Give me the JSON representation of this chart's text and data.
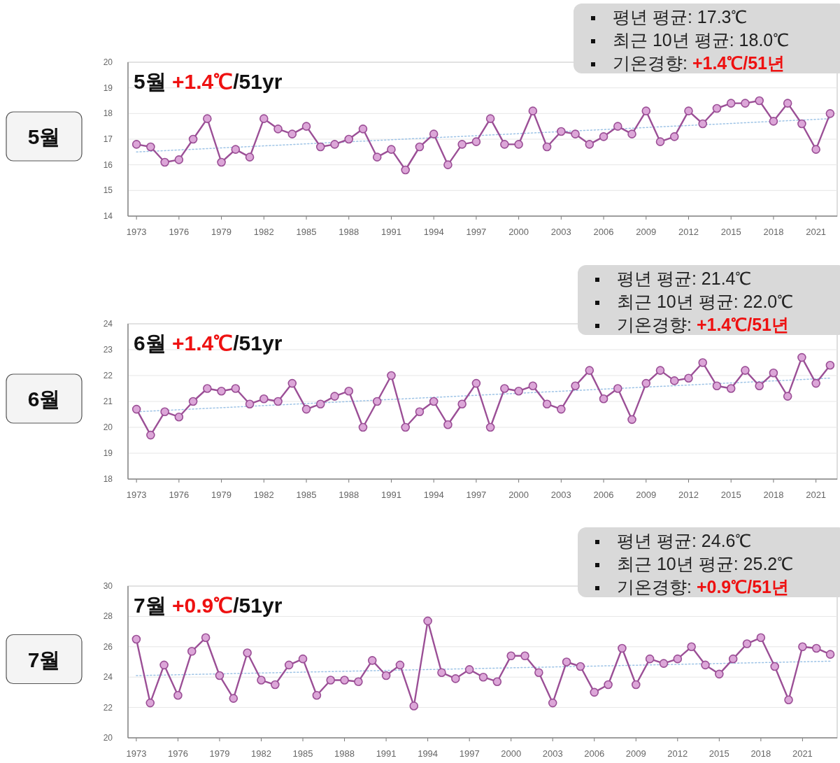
{
  "chart_data": [
    {
      "type": "line",
      "title": "5월 +1.4℃/51yr",
      "annotations": [
        "5월",
        "평년 평균: 17.3℃",
        "최근 10년 평균: 18.0℃",
        "기온경향: +1.4℃/51년"
      ],
      "x": [
        1973,
        1974,
        1975,
        1976,
        1977,
        1978,
        1979,
        1980,
        1981,
        1982,
        1983,
        1984,
        1985,
        1986,
        1987,
        1988,
        1989,
        1990,
        1991,
        1992,
        1993,
        1994,
        1995,
        1996,
        1997,
        1998,
        1999,
        2000,
        2001,
        2002,
        2003,
        2004,
        2005,
        2006,
        2007,
        2008,
        2009,
        2010,
        2011,
        2012,
        2013,
        2014,
        2015,
        2016,
        2017,
        2018,
        2019,
        2020,
        2021,
        2022
      ],
      "series": [
        {
          "type": "line",
          "color": "#9b4f96",
          "marker": "circle",
          "values": [
            16.8,
            16.7,
            16.1,
            16.2,
            17.0,
            17.8,
            16.1,
            16.6,
            16.3,
            17.8,
            17.4,
            17.2,
            17.5,
            16.7,
            16.8,
            17.0,
            17.4,
            16.3,
            16.6,
            15.8,
            16.7,
            17.2,
            16.0,
            16.8,
            16.9,
            17.8,
            16.8,
            16.8,
            18.1,
            16.7,
            17.3,
            17.2,
            16.8,
            17.1,
            17.5,
            17.2,
            18.1,
            16.9,
            17.1,
            18.1,
            17.6,
            18.2,
            18.4,
            18.4,
            18.5,
            17.7,
            18.4,
            17.6,
            16.6,
            18.0
          ]
        },
        {
          "type": "line",
          "color": "#9dc3e6",
          "marker": "none",
          "line_style": "dotted",
          "x": [
            1973,
            2022
          ],
          "values": [
            16.5,
            17.8
          ]
        }
      ],
      "xlim": [
        1972.4,
        2022.5
      ],
      "xticks": [
        1973,
        1976,
        1979,
        1982,
        1985,
        1988,
        1991,
        1994,
        1997,
        2000,
        2003,
        2006,
        2009,
        2012,
        2015,
        2018,
        2021
      ],
      "ylim": [
        14,
        20
      ],
      "yticks": [
        14,
        15,
        16,
        17,
        18,
        19,
        20
      ],
      "grid": "y"
    },
    {
      "type": "line",
      "title": "6월 +1.4℃/51yr",
      "annotations": [
        "6월",
        "평년 평균: 21.4℃",
        "최근 10년 평균: 22.0℃",
        "기온경향: +1.4℃/51년"
      ],
      "x": [
        1973,
        1974,
        1975,
        1976,
        1977,
        1978,
        1979,
        1980,
        1981,
        1982,
        1983,
        1984,
        1985,
        1986,
        1987,
        1988,
        1989,
        1990,
        1991,
        1992,
        1993,
        1994,
        1995,
        1996,
        1997,
        1998,
        1999,
        2000,
        2001,
        2002,
        2003,
        2004,
        2005,
        2006,
        2007,
        2008,
        2009,
        2010,
        2011,
        2012,
        2013,
        2014,
        2015,
        2016,
        2017,
        2018,
        2019,
        2020,
        2021,
        2022
      ],
      "series": [
        {
          "type": "line",
          "color": "#9b4f96",
          "marker": "circle",
          "values": [
            20.7,
            19.7,
            20.6,
            20.4,
            21.0,
            21.5,
            21.4,
            21.5,
            20.9,
            21.1,
            21.0,
            21.7,
            20.7,
            20.9,
            21.2,
            21.4,
            20.0,
            21.0,
            22.0,
            20.0,
            20.6,
            21.0,
            20.1,
            20.9,
            21.7,
            20.0,
            21.5,
            21.4,
            21.6,
            20.9,
            20.7,
            21.6,
            22.2,
            21.1,
            21.5,
            20.3,
            21.7,
            22.2,
            21.8,
            21.9,
            22.5,
            21.6,
            21.5,
            22.2,
            21.6,
            22.1,
            21.2,
            22.7,
            21.7,
            22.4
          ]
        },
        {
          "type": "line",
          "color": "#9dc3e6",
          "marker": "none",
          "line_style": "dotted",
          "x": [
            1973,
            2022
          ],
          "values": [
            20.6,
            21.9
          ]
        }
      ],
      "xlim": [
        1972.4,
        2022.5
      ],
      "xticks": [
        1973,
        1976,
        1979,
        1982,
        1985,
        1988,
        1991,
        1994,
        1997,
        2000,
        2003,
        2006,
        2009,
        2012,
        2015,
        2018,
        2021
      ],
      "ylim": [
        18,
        24
      ],
      "yticks": [
        18,
        19,
        20,
        21,
        22,
        23,
        24
      ],
      "grid": "y"
    },
    {
      "type": "line",
      "title": "7월 +0.9℃/51yr",
      "annotations": [
        "7월",
        "평년 평균: 24.6℃",
        "최근 10년 평균: 25.2℃",
        "기온경향: +0.9℃/51년"
      ],
      "x": [
        1973,
        1974,
        1975,
        1976,
        1977,
        1978,
        1979,
        1980,
        1981,
        1982,
        1983,
        1984,
        1985,
        1986,
        1987,
        1988,
        1989,
        1990,
        1991,
        1992,
        1993,
        1994,
        1995,
        1996,
        1997,
        1998,
        1999,
        2000,
        2001,
        2002,
        2003,
        2004,
        2005,
        2006,
        2007,
        2008,
        2009,
        2010,
        2011,
        2012,
        2013,
        2014,
        2015,
        2016,
        2017,
        2018,
        2019,
        2020,
        2021,
        2022,
        2023
      ],
      "series": [
        {
          "type": "line",
          "color": "#9b4f96",
          "marker": "circle",
          "values": [
            26.5,
            22.3,
            24.8,
            22.8,
            25.7,
            26.6,
            24.1,
            22.6,
            25.6,
            23.8,
            23.5,
            24.8,
            25.2,
            22.8,
            23.8,
            23.8,
            23.7,
            25.1,
            24.1,
            24.8,
            22.1,
            27.7,
            24.3,
            23.9,
            24.5,
            24.0,
            23.7,
            25.4,
            25.4,
            24.3,
            22.3,
            25.0,
            24.7,
            23.0,
            23.5,
            25.9,
            23.5,
            25.2,
            24.9,
            25.2,
            26.0,
            24.8,
            24.2,
            25.2,
            26.2,
            26.6,
            24.7,
            22.5,
            26.0,
            25.9,
            25.5
          ]
        },
        {
          "type": "line",
          "color": "#9dc3e6",
          "marker": "none",
          "line_style": "dotted",
          "x": [
            1973,
            2023
          ],
          "values": [
            24.1,
            25.05
          ]
        }
      ],
      "xlim": [
        1972.4,
        2023.5
      ],
      "xticks": [
        1973,
        1976,
        1979,
        1982,
        1985,
        1988,
        1991,
        1994,
        1997,
        2000,
        2003,
        2006,
        2009,
        2012,
        2015,
        2018,
        2021
      ],
      "ylim": [
        20,
        30
      ],
      "yticks": [
        20,
        22,
        24,
        26,
        28,
        30
      ],
      "grid": "y"
    }
  ]
}
